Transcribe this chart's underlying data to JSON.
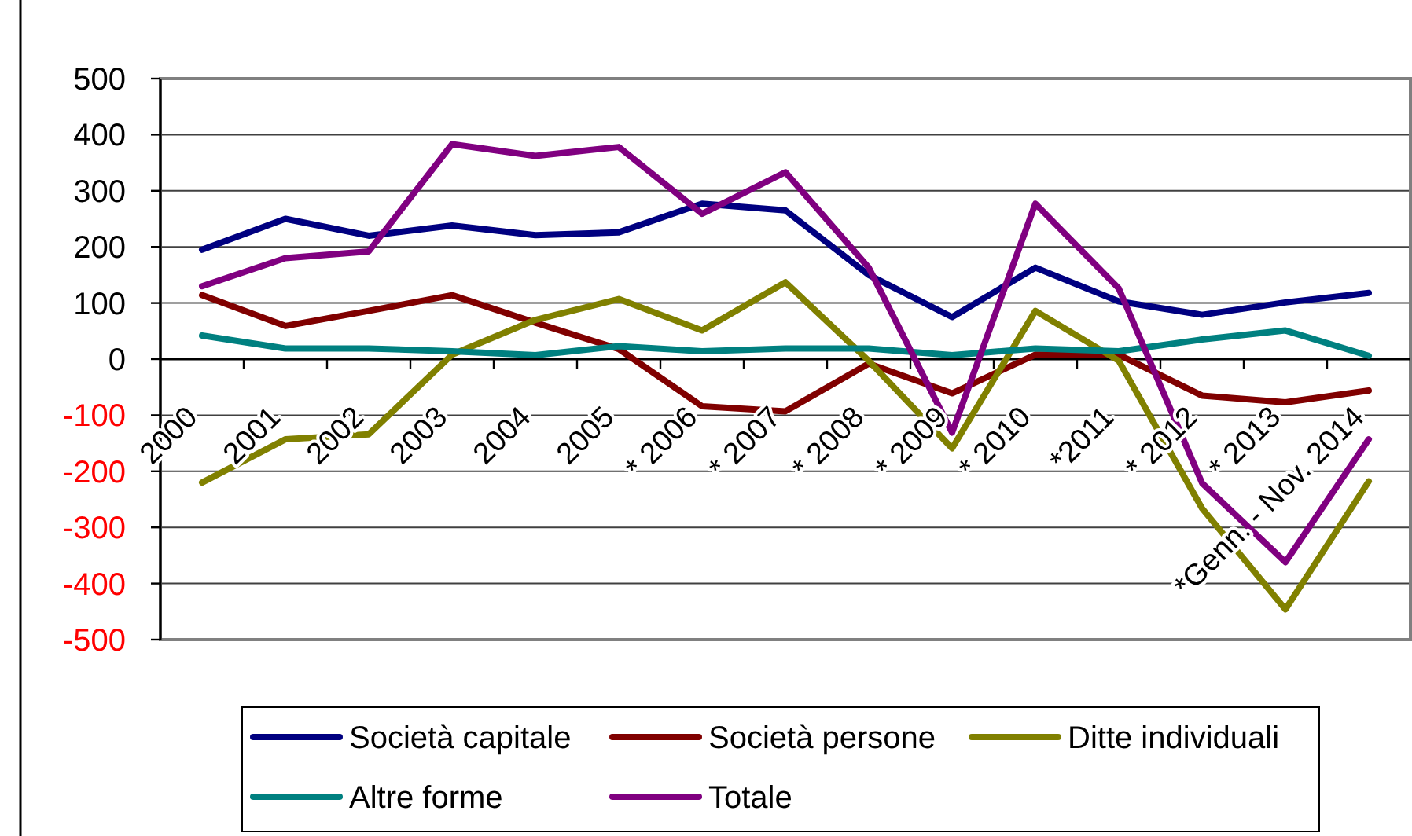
{
  "chart_data": {
    "type": "line",
    "categories": [
      "2000",
      "2001",
      "2002",
      "2003",
      "2004",
      "2005",
      "* 2006",
      "* 2007",
      "* 2008",
      "* 2009",
      "* 2010",
      "*2011",
      "* 2012",
      "* 2013",
      "*Genn. - Nov. 2014"
    ],
    "series": [
      {
        "name": "Società capitale",
        "color": "#000080",
        "values": [
          195,
          250,
          220,
          238,
          221,
          226,
          277,
          265,
          150,
          75,
          163,
          103,
          79,
          101,
          118
        ]
      },
      {
        "name": "Società persone",
        "color": "#800000",
        "values": [
          114,
          59,
          86,
          114,
          65,
          18,
          -84,
          -93,
          -8,
          -61,
          8,
          8,
          -65,
          -77,
          -56
        ]
      },
      {
        "name": "Ditte individuali",
        "color": "#808000",
        "values": [
          -220,
          -143,
          -134,
          8,
          70,
          107,
          51,
          137,
          -3,
          -159,
          86,
          -3,
          -266,
          -446,
          -218
        ]
      },
      {
        "name": "Altre forme",
        "color": "#008080",
        "values": [
          42,
          19,
          19,
          14,
          7,
          23,
          14,
          19,
          19,
          7,
          19,
          14,
          35,
          51,
          6
        ]
      },
      {
        "name": "Totale",
        "color": "#800080",
        "values": [
          130,
          180,
          192,
          383,
          362,
          378,
          259,
          333,
          163,
          -131,
          277,
          126,
          -221,
          -362,
          -143
        ]
      }
    ],
    "ylim": [
      -500,
      500
    ],
    "yticks": [
      -500,
      -400,
      -300,
      -200,
      -100,
      0,
      100,
      200,
      300,
      400,
      500
    ],
    "grid": "y",
    "legend": "bottom"
  }
}
